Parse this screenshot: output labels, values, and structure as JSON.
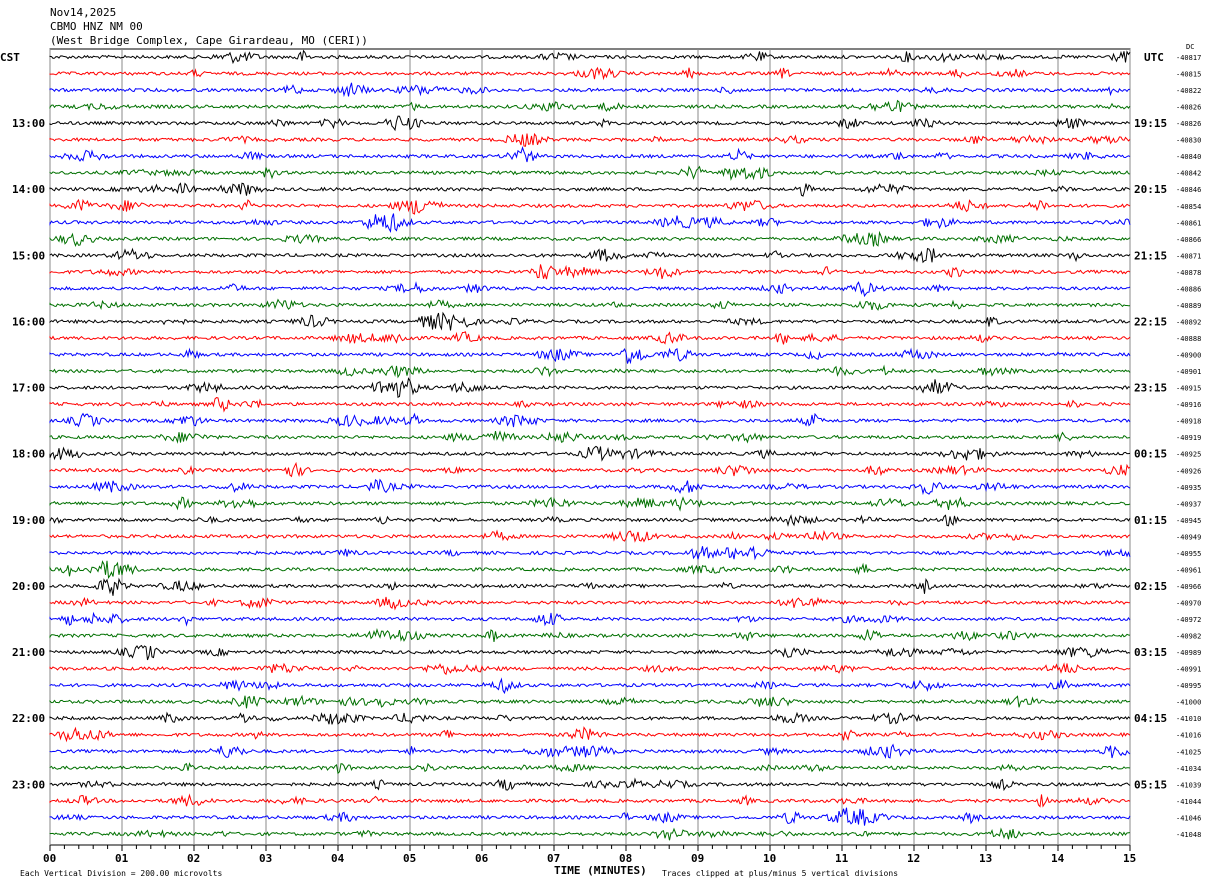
{
  "header": {
    "date": "Nov14,2025",
    "station": "CBMO HNZ NM 00",
    "location": "(West Bridge Complex, Cape Girardeau, MO (CERI))"
  },
  "chart_data": {
    "type": "line",
    "title": "CBMO HNZ NM 00",
    "xlabel": "TIME (MINUTES)",
    "xlim": [
      0,
      15
    ],
    "x_ticks": [
      "00",
      "01",
      "02",
      "03",
      "04",
      "05",
      "06",
      "07",
      "08",
      "09",
      "10",
      "11",
      "12",
      "13",
      "14",
      "15"
    ],
    "left_axis_title": "CST",
    "right_axis_title": "UTC",
    "dc_title": "DC",
    "left_labels": [
      "13:00",
      "14:00",
      "15:00",
      "16:00",
      "17:00",
      "18:00",
      "19:00",
      "20:00",
      "21:00",
      "22:00",
      "23:00"
    ],
    "right_labels": [
      "19:15",
      "20:15",
      "21:15",
      "22:15",
      "23:15",
      "00:15",
      "01:15",
      "02:15",
      "03:15",
      "04:15",
      "05:15"
    ],
    "trace_colors": [
      "#000000",
      "#ff0000",
      "#0000ff",
      "#007000"
    ],
    "dc_offsets": [
      -40817,
      -40815,
      -40822,
      -40826,
      -40826,
      -40830,
      -40840,
      -40842,
      -40846,
      -40854,
      -40861,
      -40866,
      -40871,
      -40878,
      -40886,
      -40889,
      -40892,
      -40888,
      -40900,
      -40901,
      -40915,
      -40916,
      -40918,
      -40919,
      -40925,
      -40926,
      -40935,
      -40937,
      -40945,
      -40949,
      -40955,
      -40961,
      -40966,
      -40970,
      -40972,
      -40982,
      -40989,
      -40991,
      -40995,
      -41000,
      -41010,
      -41016,
      -41025,
      -41034,
      -41039,
      -41044,
      -41046,
      -41048
    ],
    "scale_note": "Each Vertical Division =  200.00 microvolts",
    "clip_note": "Traces clipped at plus/minus 5 vertical divisions"
  }
}
